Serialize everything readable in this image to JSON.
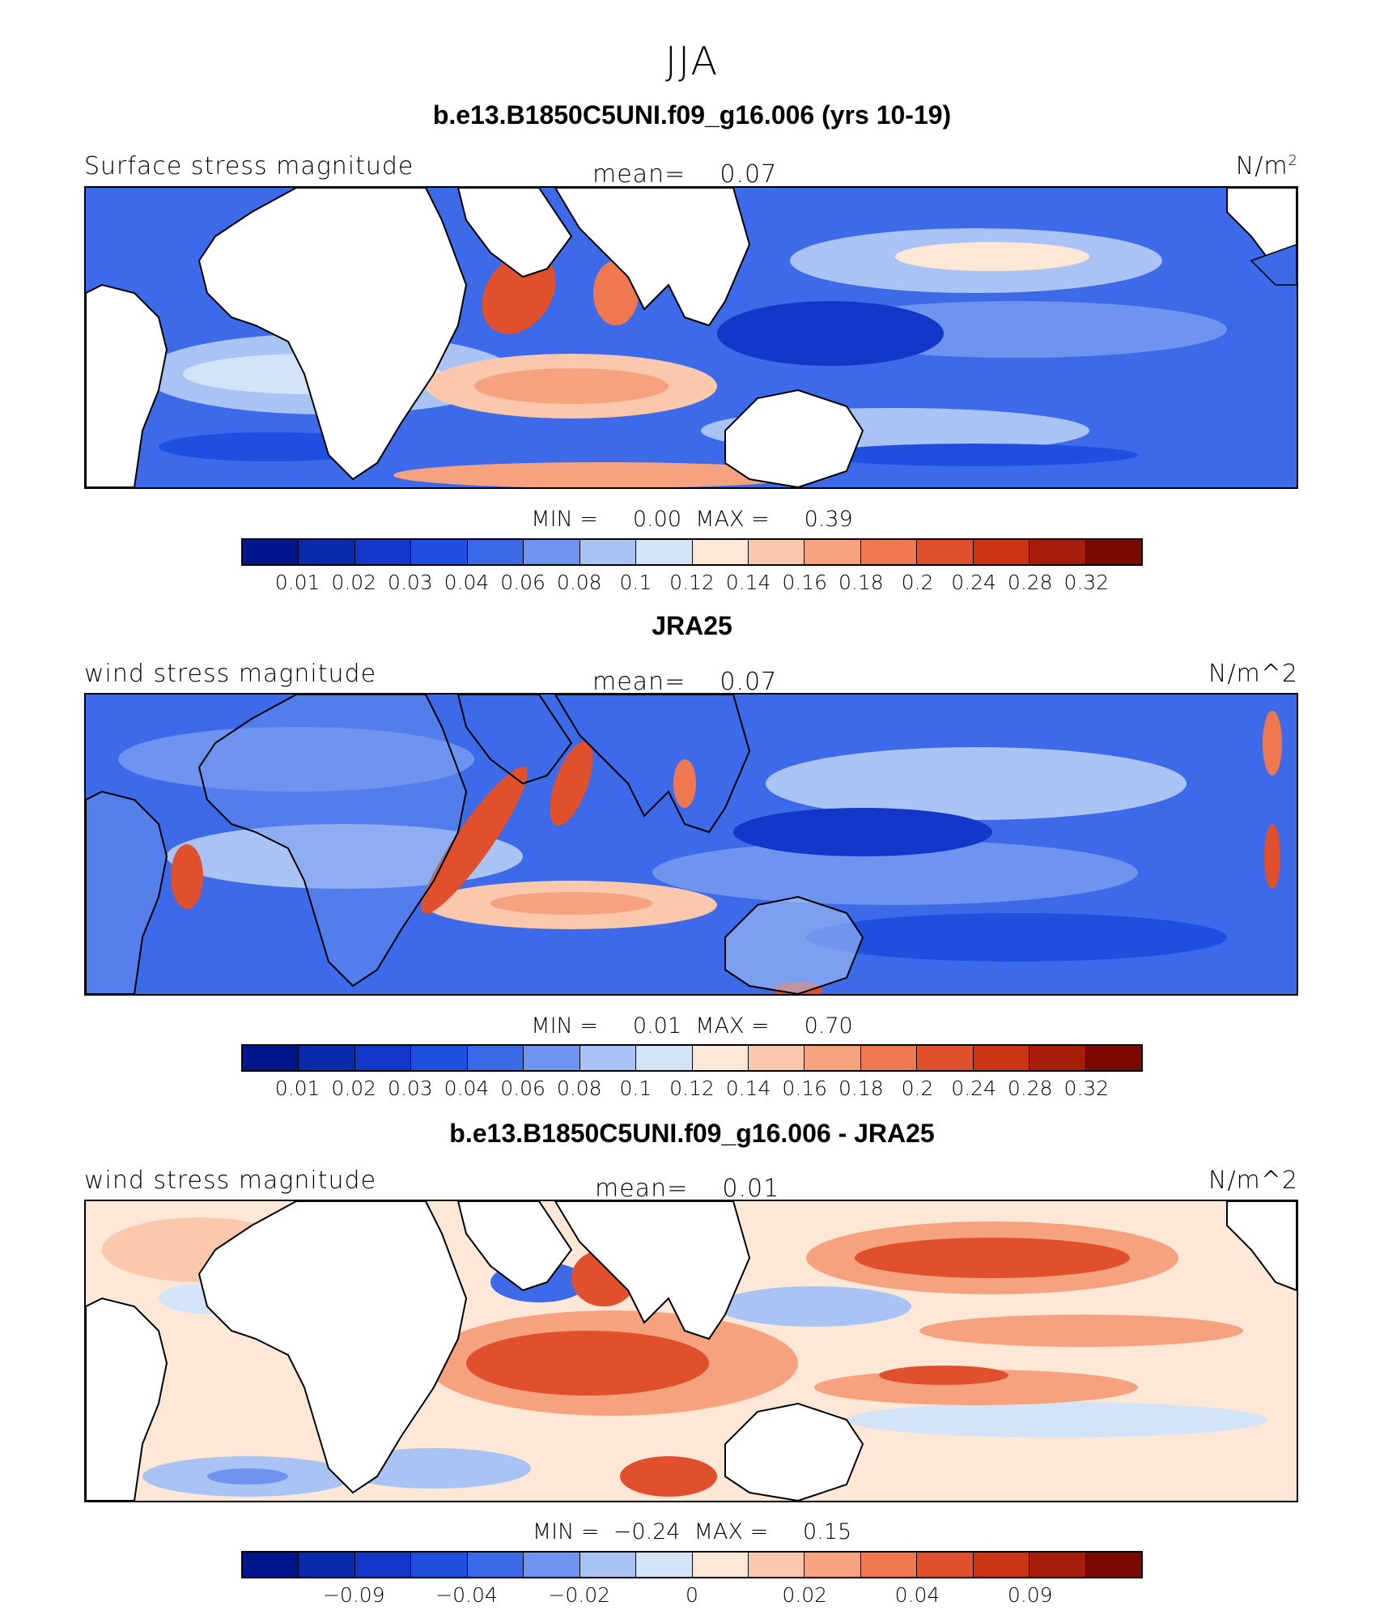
{
  "figure_title": "JJA",
  "colors": {
    "ocean_blue_dark": "#1a3fcf",
    "ocean_blue": "#3d6ae8",
    "ocean_light": "#c7dcf8",
    "warm": "#e8573a",
    "warm_light": "#f9c9b0",
    "land": "#ffffff"
  },
  "panels": [
    {
      "title": "b.e13.B1850C5UNI.f09_g16.006 (yrs 10-19)",
      "left_label": "Surface stress magnitude",
      "mean_label": "mean=",
      "mean_value": "0.07",
      "units_base": "N/m",
      "units_sup": "2",
      "min_label": "MIN =",
      "min_value": "0.00",
      "max_label": "MAX =",
      "max_value": "0.39",
      "colorbar_ticks": [
        "0.01",
        "0.02",
        "0.03",
        "0.04",
        "0.06",
        "0.08",
        "0.1",
        "0.12",
        "0.14",
        "0.16",
        "0.18",
        "0.2",
        "0.24",
        "0.28",
        "0.32"
      ]
    },
    {
      "title": "JRA25",
      "left_label": "wind stress magnitude",
      "mean_label": "mean=",
      "mean_value": "0.07",
      "units": "N/m^2",
      "min_label": "MIN =",
      "min_value": "0.01",
      "max_label": "MAX =",
      "max_value": "0.70",
      "colorbar_ticks": [
        "0.01",
        "0.02",
        "0.03",
        "0.04",
        "0.06",
        "0.08",
        "0.1",
        "0.12",
        "0.14",
        "0.16",
        "0.18",
        "0.2",
        "0.24",
        "0.28",
        "0.32"
      ]
    },
    {
      "title": "b.e13.B1850C5UNI.f09_g16.006 - JRA25",
      "left_label": "wind stress magnitude",
      "mean_label": "mean=",
      "mean_value": "0.01",
      "units": "N/m^2",
      "min_label": "MIN =",
      "min_value": "−0.24",
      "max_label": "MAX =",
      "max_value": "0.15",
      "colorbar_ticks": [
        "−0.09",
        "−0.04",
        "−0.02",
        "0",
        "0.02",
        "0.04",
        "0.09"
      ]
    }
  ],
  "colorbar_colors_magnitude": [
    "#00148c",
    "#0a2aad",
    "#1338c9",
    "#1f4fe0",
    "#3a6ae8",
    "#6f94ef",
    "#a9c3f4",
    "#d3e4f8",
    "#fde8d8",
    "#fbc7ad",
    "#f7a27e",
    "#f07850",
    "#e0502c",
    "#cc3514",
    "#a81c0a",
    "#7a0a00"
  ],
  "colorbar_colors_diff": [
    "#00148c",
    "#0a2aad",
    "#1338c9",
    "#1f4fe0",
    "#3a6ae8",
    "#6f94ef",
    "#a9c3f4",
    "#d3e4f8",
    "#fde8d8",
    "#fbc7ad",
    "#f7a27e",
    "#f07850",
    "#e0502c",
    "#cc3514",
    "#a81c0a",
    "#7a0a00"
  ]
}
